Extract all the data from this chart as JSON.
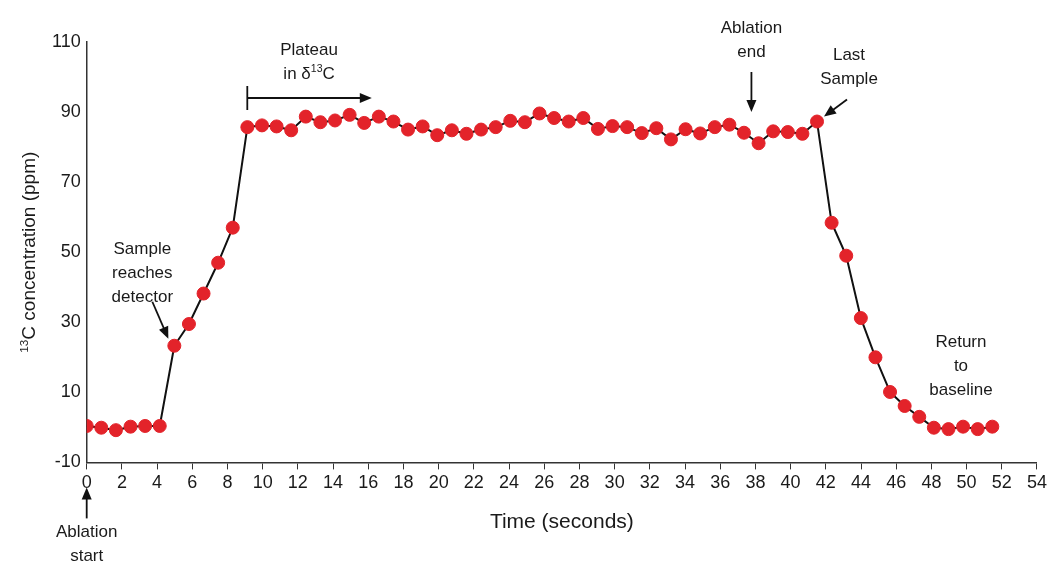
{
  "chart_data": {
    "type": "line",
    "xlabel": "Time (seconds)",
    "ylabel": "$^{13}$C concentration (ppm)",
    "x": [
      0,
      0.83,
      1.66,
      2.49,
      3.32,
      4.15,
      4.98,
      5.81,
      6.64,
      7.47,
      8.3,
      9.13,
      9.96,
      10.79,
      11.62,
      12.45,
      13.28,
      14.11,
      14.94,
      15.77,
      16.6,
      17.43,
      18.26,
      19.09,
      19.92,
      20.75,
      21.58,
      22.41,
      23.24,
      24.07,
      24.9,
      25.73,
      26.56,
      27.39,
      28.22,
      29.05,
      29.88,
      30.71,
      31.54,
      32.37,
      33.2,
      34.03,
      34.86,
      35.69,
      36.52,
      37.35,
      38.18,
      39.01,
      39.84,
      40.67,
      41.5,
      42.33,
      43.16,
      43.99,
      44.82,
      45.65,
      46.48,
      47.31,
      48.14,
      48.97,
      49.8,
      50.63,
      51.46
    ],
    "series": [
      {
        "color": "#e3232a",
        "values": [
          0.4,
          -0.1,
          -0.8,
          0.2,
          0.4,
          0.4,
          23.3,
          29.5,
          38.2,
          47.0,
          57.0,
          85.7,
          86.2,
          85.9,
          84.8,
          88.7,
          87.1,
          87.6,
          89.2,
          86.9,
          88.7,
          87.3,
          85.0,
          85.9,
          83.4,
          84.8,
          83.8,
          85.0,
          85.7,
          87.5,
          87.1,
          89.6,
          88.3,
          87.3,
          88.3,
          85.2,
          86.0,
          85.7,
          84.0,
          85.4,
          82.2,
          85.1,
          83.9,
          85.7,
          86.4,
          84.1,
          81.1,
          84.5,
          84.3,
          83.8,
          87.3,
          58.4,
          49.0,
          31.2,
          20.0,
          10.1,
          6.1,
          3.0,
          -0.1,
          -0.5,
          0.2,
          -0.5,
          0.2
        ]
      }
    ],
    "xlim": [
      0,
      54
    ],
    "xticks": [
      0,
      2,
      4,
      6,
      8,
      10,
      12,
      14,
      16,
      18,
      20,
      22,
      24,
      26,
      28,
      30,
      32,
      34,
      36,
      38,
      40,
      42,
      44,
      46,
      48,
      50,
      52,
      54
    ],
    "ylim": [
      -10,
      110
    ],
    "yticks": [
      -10,
      10,
      30,
      50,
      70,
      90,
      110
    ],
    "grid": false,
    "legend": false,
    "marker": "circle",
    "line_style": "solid",
    "annotations": [
      {
        "text": "Sample reaches detector",
        "x": 4.98,
        "y": 23.3
      },
      "Plateau in δ$^{13}$C",
      "Ablation end",
      {
        "text": "Last Sample",
        "x": 41.5,
        "y": 87.3
      },
      "Return to baseline",
      "Ablation start"
    ]
  }
}
